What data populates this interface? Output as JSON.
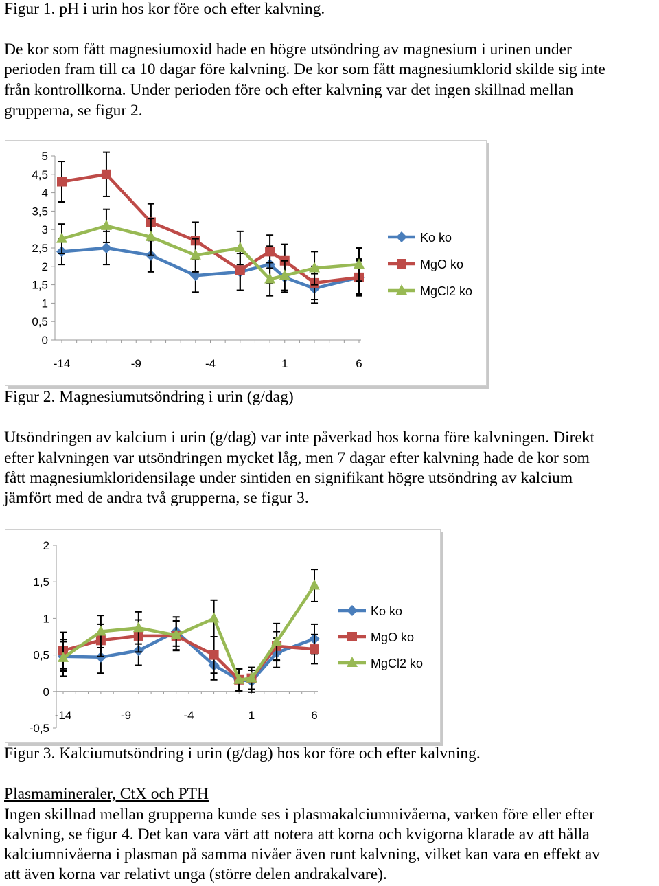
{
  "text_top": [
    "Figur 1. pH i urin hos kor före och efter kalvning.",
    "De kor som fått magnesiumoxid hade en högre utsöndring av magnesium i urinen under",
    "perioden fram till ca 10 dagar före kalvning. De kor som fått magnesiumklorid skilde sig inte",
    "från kontrollkorna. Under perioden före och efter kalvning var det ingen skillnad mellan",
    "grupperna, se figur 2."
  ],
  "caption_fig2": "Figur 2. Magnesiumutsöndring i urin (g/dag)",
  "text_mid": [
    "Utsöndringen av kalcium i urin (g/dag) var inte påverkad hos korna före kalvningen. Direkt",
    "efter kalvningen var utsöndringen mycket låg, men 7 dagar efter kalvning hade de kor som",
    "fått magnesiumkloridensilage under sintiden en signifikant högre utsöndring av kalcium",
    "jämfört med de andra två grupperna, se figur 3."
  ],
  "caption_fig3": "Figur 3. Kalciumutsöndring i urin (g/dag) hos kor före och efter kalvning.",
  "section_heading": "Plasmamineraler, CtX och PTH",
  "text_bottom": [
    "Ingen skillnad mellan grupperna kunde ses i plasmakalciumnivåerna, varken före eller efter",
    "kalvning, se figur 4. Det kan vara värt att notera att korna och kvigorna klarade av att hålla",
    "kalciumnivåerna i plasman på samma nivåer även runt kalvning, vilket kan vara en effekt av",
    "att även korna var relativt unga (större delen andrakalvare)."
  ],
  "chart_data": [
    {
      "type": "line",
      "ylim": [
        0,
        5
      ],
      "ytick_labels": [
        "0",
        "0,5",
        "1",
        "1,5",
        "2",
        "2,5",
        "3",
        "3,5",
        "4",
        "4,5",
        "5"
      ],
      "xlim": [
        -14,
        6
      ],
      "xtick_labels": [
        "-14",
        "-9",
        "-4",
        "1",
        "6"
      ],
      "grid": false,
      "legend_position": "right",
      "series": [
        {
          "name": "Ko ko",
          "color": "#4a7ebb",
          "marker": "diamond",
          "x": [
            -14,
            -11,
            -8,
            -5,
            -2,
            0,
            1,
            3,
            6
          ],
          "y": [
            2.4,
            2.5,
            2.3,
            1.75,
            1.85,
            2.05,
            1.7,
            1.4,
            1.7
          ],
          "err": [
            0.35,
            0.45,
            0.45,
            0.45,
            0.5,
            0.5,
            0.4,
            0.4,
            0.45
          ]
        },
        {
          "name": "MgO ko",
          "color": "#be4b48",
          "marker": "square",
          "x": [
            -14,
            -11,
            -8,
            -5,
            -2,
            0,
            1,
            3,
            6
          ],
          "y": [
            4.3,
            4.5,
            3.2,
            2.7,
            1.9,
            2.4,
            2.15,
            1.55,
            1.7
          ],
          "err": [
            0.55,
            0.6,
            0.5,
            0.5,
            0.55,
            0.45,
            0.45,
            0.45,
            0.5
          ]
        },
        {
          "name": "MgCl2 ko",
          "color": "#98b954",
          "marker": "triangle",
          "x": [
            -14,
            -11,
            -8,
            -5,
            -2,
            0,
            1,
            3,
            6
          ],
          "y": [
            2.75,
            3.1,
            2.8,
            2.3,
            2.5,
            1.65,
            1.75,
            1.95,
            2.05
          ],
          "err": [
            0.4,
            0.45,
            0.5,
            0.45,
            0.45,
            0.45,
            0.4,
            0.45,
            0.45
          ]
        }
      ]
    },
    {
      "type": "line",
      "ylim": [
        -0.5,
        2
      ],
      "ytick_labels": [
        "-0,5",
        "0",
        "0,5",
        "1",
        "1,5",
        "2"
      ],
      "xlim": [
        -14,
        6
      ],
      "xtick_labels": [
        "-14",
        "-9",
        "-4",
        "1",
        "6"
      ],
      "grid": false,
      "legend_position": "right",
      "series": [
        {
          "name": "Ko ko",
          "color": "#4a7ebb",
          "marker": "diamond",
          "x": [
            -14,
            -11,
            -8,
            -5,
            -2,
            0,
            1,
            3,
            6
          ],
          "y": [
            0.48,
            0.47,
            0.56,
            0.82,
            0.36,
            0.16,
            0.14,
            0.53,
            0.72
          ],
          "err": [
            0.2,
            0.22,
            0.2,
            0.2,
            0.2,
            0.15,
            0.15,
            0.2,
            0.2
          ]
        },
        {
          "name": "MgO ko",
          "color": "#be4b48",
          "marker": "square",
          "x": [
            -14,
            -11,
            -8,
            -5,
            -2,
            0,
            1,
            3,
            6
          ],
          "y": [
            0.56,
            0.7,
            0.76,
            0.76,
            0.5,
            0.16,
            0.18,
            0.62,
            0.58
          ],
          "err": [
            0.25,
            0.22,
            0.22,
            0.2,
            0.25,
            0.15,
            0.15,
            0.2,
            0.2
          ]
        },
        {
          "name": "MgCl2 ko",
          "color": "#98b954",
          "marker": "triangle",
          "x": [
            -14,
            -11,
            -8,
            -5,
            -2,
            0,
            1,
            3,
            6
          ],
          "y": [
            0.46,
            0.82,
            0.87,
            0.77,
            1.0,
            0.16,
            0.18,
            0.68,
            1.45
          ],
          "err": [
            0.25,
            0.22,
            0.22,
            0.2,
            0.25,
            0.15,
            0.15,
            0.25,
            0.22
          ]
        }
      ]
    }
  ]
}
